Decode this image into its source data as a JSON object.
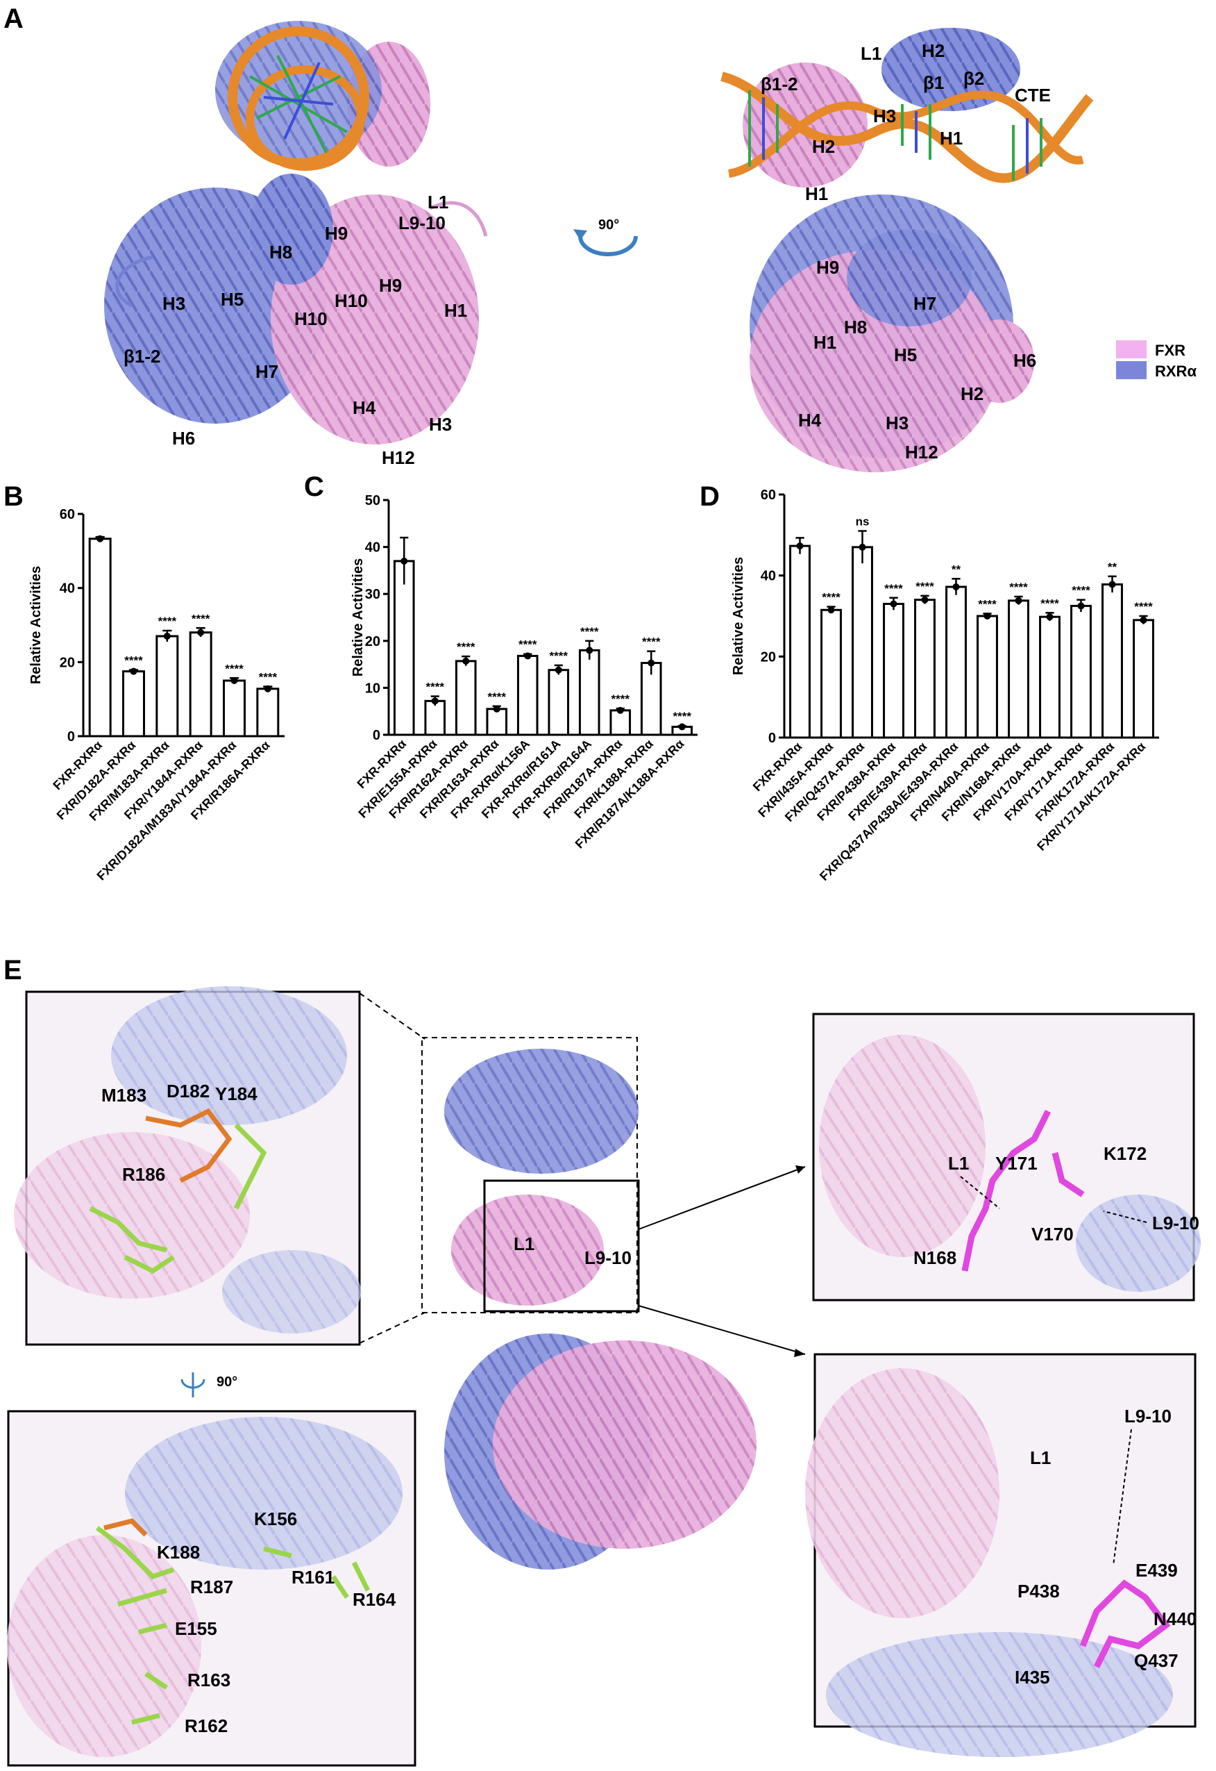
{
  "panels": {
    "A": "A",
    "B": "B",
    "C": "C",
    "D": "D",
    "E": "E"
  },
  "legend": [
    {
      "name": "FXR",
      "color": "#f2b2ef"
    },
    {
      "name": "RXRα",
      "color": "#7b86da"
    }
  ],
  "colors": {
    "fxr": "#d99ad0",
    "rxr": "#7480d4",
    "dna": "#e6892a",
    "stick_green": "#9ad54a",
    "stick_orange": "#e07b2a",
    "stick_magenta": "#e048e0"
  },
  "panelA": {
    "rotation_label": "90°",
    "left_labels": [
      "H3",
      "H5",
      "H8",
      "H9",
      "L1",
      "L9-10",
      "H10",
      "H10",
      "H9",
      "H1",
      "H7",
      "β1-2",
      "H6",
      "H4",
      "H3",
      "H12"
    ],
    "right_labels": [
      "L1",
      "H2",
      "β1",
      "β2",
      "CTE",
      "β1-2",
      "H3",
      "H2",
      "H1",
      "H1",
      "H9",
      "H7",
      "H8",
      "H1",
      "H5",
      "H6",
      "H2",
      "H4",
      "H3",
      "H12"
    ]
  },
  "panelE": {
    "rotation_label": "90°",
    "center_labels": [
      "L1",
      "L9-10"
    ],
    "topleft_labels": [
      "M183",
      "D182",
      "Y184",
      "R186"
    ],
    "bottomleft_labels": [
      "K156",
      "K188",
      "R187",
      "R161",
      "R164",
      "E155",
      "R163",
      "R162"
    ],
    "topright_labels": [
      "Y171",
      "K172",
      "L1",
      "V170",
      "L9-10",
      "N168"
    ],
    "bottomright_labels": [
      "L9-10",
      "L1",
      "E439",
      "P438",
      "N440",
      "I435",
      "Q437"
    ]
  },
  "chart_data": [
    {
      "panel": "B",
      "type": "bar",
      "ylabel": "Relative Activities",
      "ylim": [
        0,
        60
      ],
      "yticks": [
        0,
        20,
        40,
        60
      ],
      "categories": [
        "FXR-RXRα",
        "FXR/D182A-RXRα",
        "FXR/M183A-RXRα",
        "FXR/Y184A-RXRα",
        "FXR/D182A/M183A/Y184A-RXRα",
        "FXR/R186A-RXRα"
      ],
      "values": [
        53.3,
        17.5,
        27,
        28,
        15,
        12.8
      ],
      "errors": [
        0.5,
        0.4,
        1.5,
        1.2,
        0.7,
        0.6
      ],
      "significance": [
        "",
        "****",
        "****",
        "****",
        "****",
        "****"
      ]
    },
    {
      "panel": "C",
      "type": "bar",
      "ylabel": "Relative Activities",
      "ylim": [
        0,
        50
      ],
      "yticks": [
        0,
        10,
        20,
        30,
        40,
        50
      ],
      "categories": [
        "FXR-RXRα",
        "FXR/E155A-RXRα",
        "FXR/R162A-RXRα",
        "FXR/R163A-RXRα",
        "FXR-RXRα/K156A",
        "FXR-RXRα/R161A",
        "FXR-RXRα/R164A",
        "FXR/R187A-RXRα",
        "FXR/K188A-RXRα",
        "FXR/R187A/K188A-RXRα"
      ],
      "values": [
        37,
        7.2,
        15.7,
        5.5,
        16.8,
        13.8,
        18,
        5.2,
        15.3,
        1.7
      ],
      "errors": [
        5,
        1,
        1,
        0.6,
        0.4,
        1,
        2,
        0.4,
        2.5,
        0.2
      ],
      "significance": [
        "",
        "****",
        "****",
        "****",
        "****",
        "****",
        "****",
        "****",
        "****",
        "****"
      ]
    },
    {
      "panel": "D",
      "type": "bar",
      "ylabel": "Relative Activities",
      "ylim": [
        0,
        60
      ],
      "yticks": [
        0,
        20,
        40,
        60
      ],
      "categories": [
        "FXR-RXRα",
        "FXR/I435A-RXRα",
        "FXR/Q437A-RXRα",
        "FXR/P438A-RXRα",
        "FXR/E439A-RXRα",
        "FXR/Q437A/P438A/E439A-RXRα",
        "FXR/N440A-RXRα",
        "FXR/N168A-RXRα",
        "FXR/V170A-RXRα",
        "FXR/Y171A-RXRα",
        "FXR/K172A-RXRα",
        "FXR/Y171A/K172A-RXRα"
      ],
      "values": [
        47.3,
        31.5,
        47,
        33,
        34,
        37.2,
        30,
        33.8,
        29.8,
        32.5,
        37.8,
        29
      ],
      "errors": [
        2,
        0.8,
        4,
        1.5,
        1,
        2,
        0.6,
        1,
        1,
        1.5,
        2,
        1
      ],
      "significance": [
        "",
        "****",
        "ns",
        "****",
        "****",
        "**",
        "****",
        "****",
        "****",
        "****",
        "**",
        "****"
      ]
    }
  ]
}
